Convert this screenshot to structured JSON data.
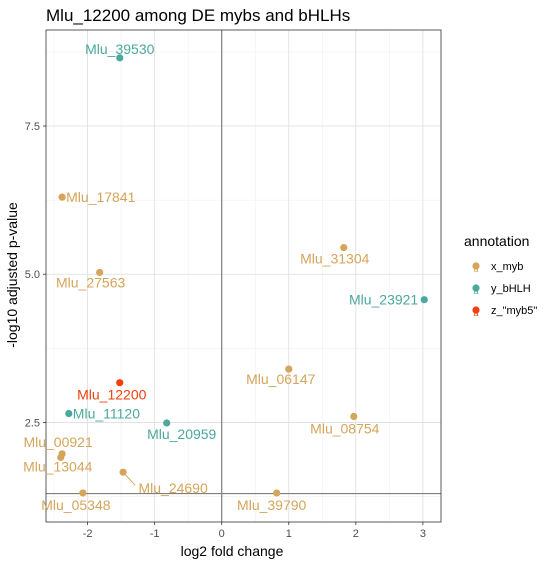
{
  "chart_data": {
    "type": "scatter",
    "title": "Mlu_12200 among DE mybs and bHLHs",
    "xlabel": "log2 fold change",
    "ylabel": "-log10 adjusted p-value",
    "xlim": [
      -2.62,
      3.27
    ],
    "ylim": [
      0.82,
      9.12
    ],
    "xticks": [
      -2,
      -1,
      0,
      1,
      2,
      3
    ],
    "yticks": [
      2.5,
      5.0,
      7.5
    ],
    "ytick_labels": [
      "2.5",
      "5.0",
      "7.5"
    ],
    "xtick_labels": [
      "-2",
      "-1",
      "0",
      "1",
      "2",
      "3"
    ],
    "grid": true,
    "reference_lines": {
      "x": 0,
      "y": 1.3
    },
    "legend": {
      "title": "annotation",
      "position": "right",
      "entries": [
        {
          "key": "x_myb",
          "label": "x_myb",
          "color": "#D4A55A"
        },
        {
          "key": "y_bHLH",
          "label": "y_bHLH",
          "color": "#4BA89D"
        },
        {
          "key": "z_myb5",
          "label": "z_\"myb5\"",
          "color": "#F0400E"
        }
      ]
    },
    "points": [
      {
        "label": "Mlu_39530",
        "x": -1.52,
        "y": 8.65,
        "group": "y_bHLH"
      },
      {
        "label": "Mlu_17841",
        "x": -2.38,
        "y": 6.3,
        "group": "x_myb"
      },
      {
        "label": "Mlu_27563",
        "x": -1.82,
        "y": 5.03,
        "group": "x_myb"
      },
      {
        "label": "Mlu_31304",
        "x": 1.82,
        "y": 5.45,
        "group": "x_myb"
      },
      {
        "label": "Mlu_23921",
        "x": 3.02,
        "y": 4.57,
        "group": "y_bHLH"
      },
      {
        "label": "Mlu_06147",
        "x": 1.0,
        "y": 3.4,
        "group": "x_myb"
      },
      {
        "label": "Mlu_12200",
        "x": -1.52,
        "y": 3.17,
        "group": "z_myb5"
      },
      {
        "label": "Mlu_11120",
        "x": -2.28,
        "y": 2.65,
        "group": "y_bHLH"
      },
      {
        "label": "Mlu_20959",
        "x": -0.82,
        "y": 2.49,
        "group": "y_bHLH"
      },
      {
        "label": "Mlu_08754",
        "x": 1.97,
        "y": 2.6,
        "group": "x_myb"
      },
      {
        "label": "Mlu_00921",
        "x": -2.38,
        "y": 1.97,
        "group": "x_myb"
      },
      {
        "label": "Mlu_13044",
        "x": -2.4,
        "y": 1.91,
        "group": "x_myb"
      },
      {
        "label": "Mlu_24690",
        "x": -1.47,
        "y": 1.66,
        "group": "x_myb"
      },
      {
        "label": "Mlu_05348",
        "x": -2.07,
        "y": 1.31,
        "group": "x_myb"
      },
      {
        "label": "Mlu_39790",
        "x": 0.82,
        "y": 1.31,
        "group": "x_myb"
      }
    ]
  }
}
